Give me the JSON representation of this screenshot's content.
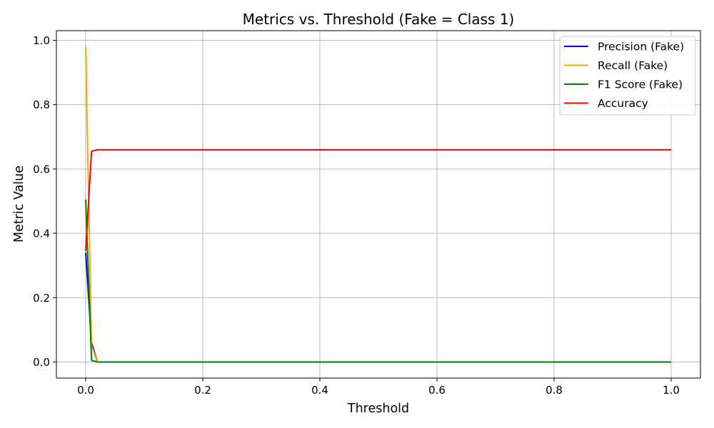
{
  "chart_data": {
    "type": "line",
    "title": "Metrics vs. Threshold (Fake = Class 1)",
    "xlabel": "Threshold",
    "ylabel": "Metric Value",
    "xlim": [
      -0.05,
      1.05
    ],
    "ylim": [
      -0.05,
      1.03
    ],
    "xticks": [
      0.0,
      0.2,
      0.4,
      0.6,
      0.8,
      1.0
    ],
    "xtick_labels": [
      "0.0",
      "0.2",
      "0.4",
      "0.6",
      "0.8",
      "1.0"
    ],
    "yticks": [
      0.0,
      0.2,
      0.4,
      0.6,
      0.8,
      1.0
    ],
    "ytick_labels": [
      "0.0",
      "0.2",
      "0.4",
      "0.6",
      "0.8",
      "1.0"
    ],
    "grid": true,
    "legend_position": "top-right",
    "series": [
      {
        "name": "Precision (Fake)",
        "color": "#0000ff",
        "x": [
          0.0,
          0.01,
          0.02,
          1.0
        ],
        "y": [
          0.34,
          0.06,
          0.0,
          0.0
        ]
      },
      {
        "name": "Recall (Fake)",
        "color": "#ffa500",
        "x": [
          0.0,
          0.01,
          0.02,
          1.0
        ],
        "y": [
          0.98,
          0.05,
          0.0,
          0.0
        ]
      },
      {
        "name": "F1 Score (Fake)",
        "color": "#008000",
        "x": [
          0.0,
          0.01,
          0.02,
          1.0
        ],
        "y": [
          0.505,
          0.005,
          0.0,
          0.0
        ]
      },
      {
        "name": "Accuracy",
        "color": "#ff0000",
        "x": [
          0.0,
          0.01,
          0.02,
          1.0
        ],
        "y": [
          0.345,
          0.655,
          0.66,
          0.66
        ]
      }
    ]
  }
}
